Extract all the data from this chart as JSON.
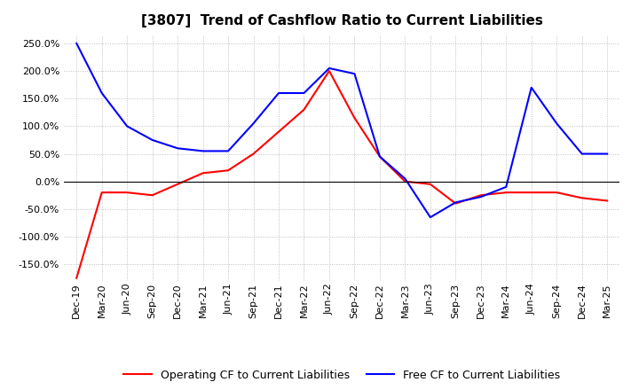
{
  "title": "[3807]  Trend of Cashflow Ratio to Current Liabilities",
  "x_labels": [
    "Dec-19",
    "Mar-20",
    "Jun-20",
    "Sep-20",
    "Dec-20",
    "Mar-21",
    "Jun-21",
    "Sep-21",
    "Dec-21",
    "Mar-22",
    "Jun-22",
    "Sep-22",
    "Dec-22",
    "Mar-23",
    "Jun-23",
    "Sep-23",
    "Dec-23",
    "Mar-24",
    "Jun-24",
    "Sep-24",
    "Dec-24",
    "Mar-25"
  ],
  "operating_cf": [
    -175.0,
    -20.0,
    -20.0,
    -25.0,
    -5.0,
    15.0,
    20.0,
    50.0,
    90.0,
    130.0,
    200.0,
    115.0,
    45.0,
    0.0,
    -5.0,
    -40.0,
    -25.0,
    -20.0,
    -20.0,
    -20.0,
    -30.0,
    -35.0
  ],
  "free_cf": [
    250.0,
    160.0,
    100.0,
    75.0,
    60.0,
    55.0,
    55.0,
    105.0,
    160.0,
    160.0,
    205.0,
    195.0,
    45.0,
    5.0,
    -65.0,
    -38.0,
    -28.0,
    -10.0,
    170.0,
    105.0,
    50.0,
    50.0
  ],
  "operating_color": "#ff0000",
  "free_color": "#0000ff",
  "ylim_min": -175.0,
  "ylim_max": 265.0,
  "yticks": [
    -150.0,
    -100.0,
    -50.0,
    0.0,
    50.0,
    100.0,
    150.0,
    200.0,
    250.0
  ],
  "legend_operating": "Operating CF to Current Liabilities",
  "legend_free": "Free CF to Current Liabilities",
  "background_color": "#ffffff",
  "grid_color": "#bbbbbb",
  "title_fontsize": 11,
  "tick_fontsize": 8,
  "legend_fontsize": 9
}
